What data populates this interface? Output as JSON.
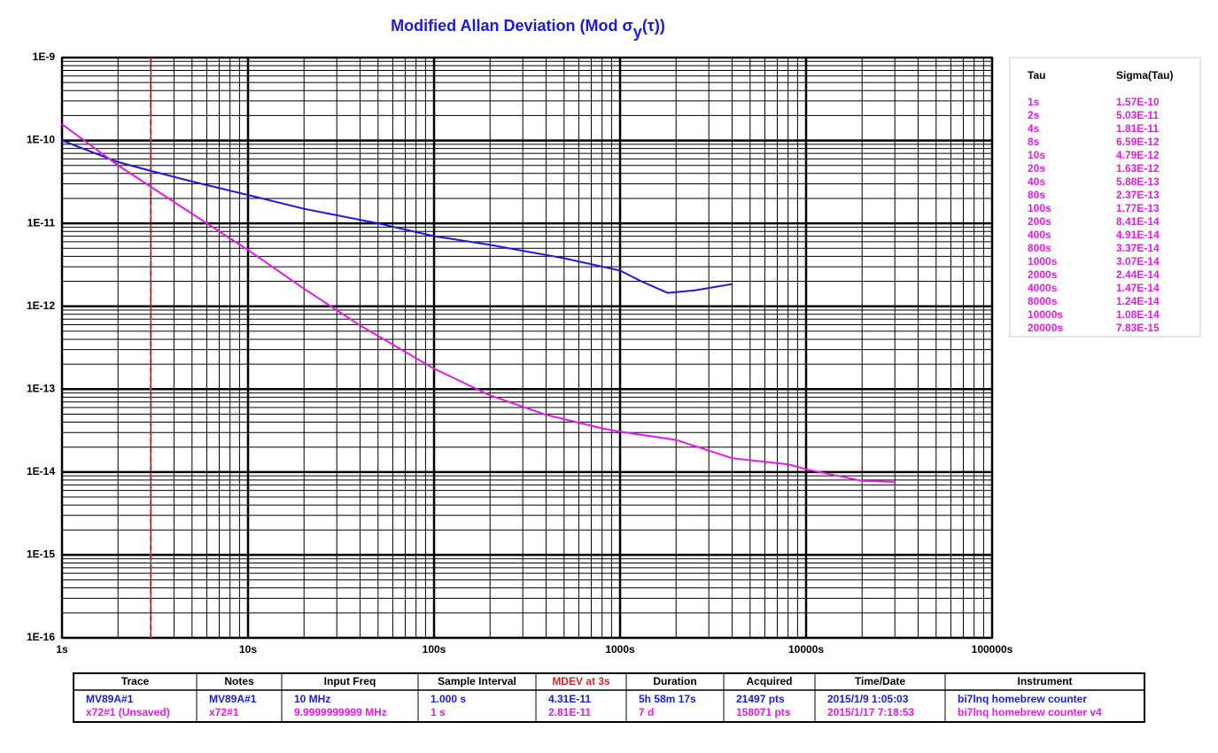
{
  "chart_data": {
    "type": "line",
    "title": "Modified Allan Deviation (Mod σ",
    "title_sub": "y",
    "title_end": "(τ))",
    "log_x": true,
    "log_y": true,
    "grid": true,
    "xlim": [
      1,
      100000
    ],
    "xticks": [
      {
        "value": 1,
        "label": "1s"
      },
      {
        "value": 10,
        "label": "10s"
      },
      {
        "value": 100,
        "label": "100s"
      },
      {
        "value": 1000,
        "label": "1000s"
      },
      {
        "value": 10000,
        "label": "10000s"
      },
      {
        "value": 100000,
        "label": "100000s"
      }
    ],
    "ylim": [
      1e-16,
      1e-09
    ],
    "yticks": [
      {
        "value": 1e-16,
        "label": "1E-16"
      },
      {
        "value": 1e-15,
        "label": "1E-15"
      },
      {
        "value": 1e-14,
        "label": "1E-14"
      },
      {
        "value": 1e-13,
        "label": "1E-13"
      },
      {
        "value": 1e-12,
        "label": "1E-12"
      },
      {
        "value": 1e-11,
        "label": "1E-11"
      },
      {
        "value": 1e-10,
        "label": "1E-10"
      },
      {
        "value": 1e-09,
        "label": "1E-9"
      }
    ],
    "marker_x": 3,
    "marker_color": "#dd2222",
    "series": [
      {
        "name": "MV89A#1",
        "color": "#1a1adc",
        "x": [
          1,
          2,
          3,
          5,
          10,
          20,
          50,
          100,
          200,
          500,
          1000,
          1300,
          1800,
          2500,
          4000
        ],
        "values": [
          1e-10,
          5.5e-11,
          4.3e-11,
          3.2e-11,
          2.2e-11,
          1.5e-11,
          1e-11,
          7e-12,
          5.5e-12,
          3.8e-12,
          2.7e-12,
          2e-12,
          1.45e-12,
          1.55e-12,
          1.85e-12
        ]
      },
      {
        "name": "x72#1 (Unsaved)",
        "color": "#e619e6",
        "x": [
          1,
          2,
          4,
          8,
          10,
          20,
          40,
          80,
          100,
          200,
          400,
          800,
          1000,
          2000,
          4000,
          8000,
          10000,
          20000,
          30000
        ],
        "values": [
          1.57e-10,
          5.03e-11,
          1.81e-11,
          6.59e-12,
          4.79e-12,
          1.63e-12,
          5.88e-13,
          2.37e-13,
          1.77e-13,
          8.41e-14,
          4.91e-14,
          3.37e-14,
          3.07e-14,
          2.44e-14,
          1.47e-14,
          1.24e-14,
          1.08e-14,
          7.83e-15,
          7.6e-15
        ]
      }
    ]
  },
  "tau_table": {
    "header": [
      "Tau",
      "Sigma(Tau)"
    ],
    "rows": [
      [
        "1s",
        "1.57E-10"
      ],
      [
        "2s",
        "5.03E-11"
      ],
      [
        "4s",
        "1.81E-11"
      ],
      [
        "8s",
        "6.59E-12"
      ],
      [
        "10s",
        "4.79E-12"
      ],
      [
        "20s",
        "1.63E-12"
      ],
      [
        "40s",
        "5.88E-13"
      ],
      [
        "80s",
        "2.37E-13"
      ],
      [
        "100s",
        "1.77E-13"
      ],
      [
        "200s",
        "8.41E-14"
      ],
      [
        "400s",
        "4.91E-14"
      ],
      [
        "800s",
        "3.37E-14"
      ],
      [
        "1000s",
        "3.07E-14"
      ],
      [
        "2000s",
        "2.44E-14"
      ],
      [
        "4000s",
        "1.47E-14"
      ],
      [
        "8000s",
        "1.24E-14"
      ],
      [
        "10000s",
        "1.08E-14"
      ],
      [
        "20000s",
        "7.83E-15"
      ]
    ]
  },
  "trace_table": {
    "header": [
      "Trace",
      "Notes",
      "Input Freq",
      "Sample Interval",
      "MDEV at 3s",
      "Duration",
      "Acquired",
      "Time/Date",
      "Instrument"
    ],
    "rows": [
      [
        "MV89A#1",
        "MV89A#1",
        "10 MHz",
        "1.000 s",
        "4.31E-11",
        "5h 58m 17s",
        "21497 pts",
        "2015/1/9 1:05:03",
        "bi7lnq homebrew counter"
      ],
      [
        "x72#1 (Unsaved)",
        "x72#1",
        "9.9999999999 MHz",
        "1 s",
        "2.81E-11",
        "7 d",
        "158071 pts",
        "2015/1/17 7:18:53",
        "bi7lnq homebrew counter v4"
      ]
    ]
  }
}
